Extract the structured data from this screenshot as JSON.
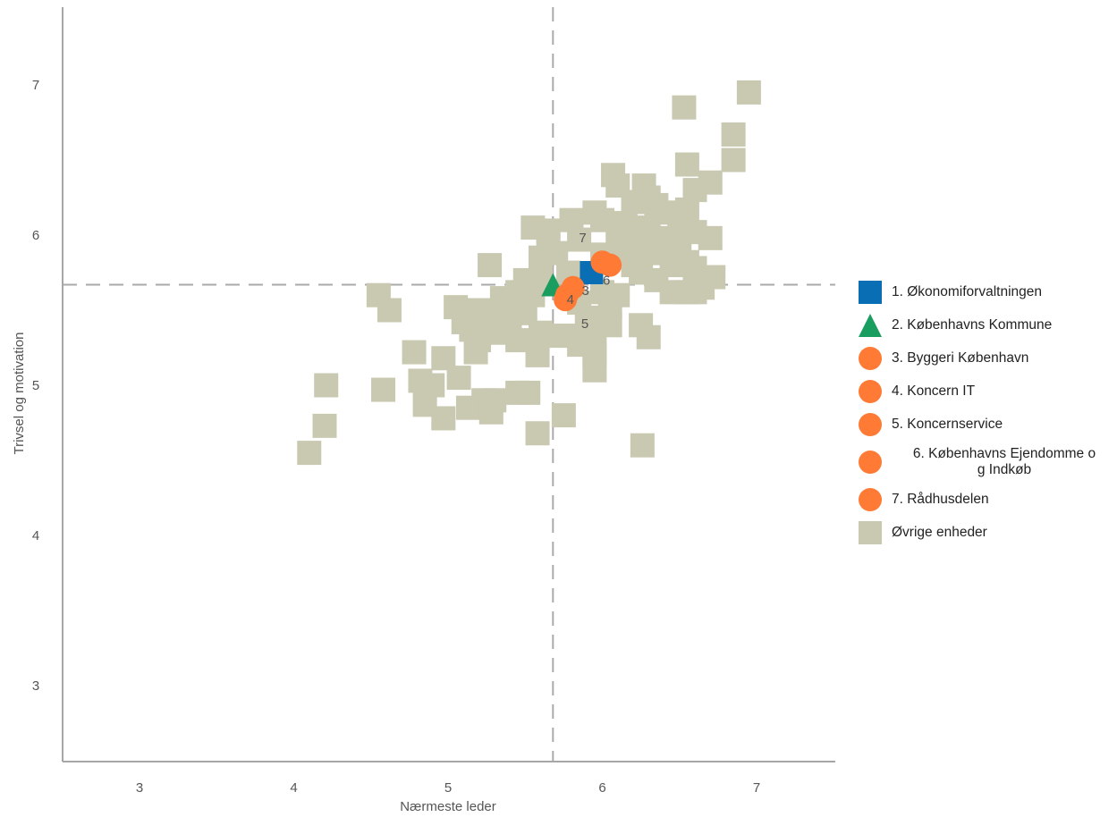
{
  "chart_data": {
    "type": "scatter",
    "xlabel": "Nærmeste leder",
    "ylabel": "Trivsel og motivation",
    "xlim": [
      2.5,
      7.55
    ],
    "ylim": [
      2.5,
      7.5
    ],
    "xticks": [
      "3",
      "4",
      "5",
      "6",
      "7"
    ],
    "yticks": [
      "3",
      "4",
      "5",
      "6",
      "7"
    ],
    "reference_lines": {
      "x": 5.68,
      "y": 5.67
    },
    "grid": false,
    "legend_position": "right",
    "series": [
      {
        "name": "1. Økonomiforvaltningen",
        "marker": "square",
        "color": "#0a6eb4",
        "points": [
          {
            "x": 5.93,
            "y": 5.75
          }
        ]
      },
      {
        "name": "2. Københavns Kommune",
        "marker": "triangle",
        "color": "#1a9e5f",
        "points": [
          {
            "x": 5.68,
            "y": 5.67
          }
        ]
      },
      {
        "name": "3. Byggeri København",
        "marker": "circle",
        "color": "#ff7a35",
        "points": [
          {
            "x": 5.81,
            "y": 5.65,
            "label": "3"
          }
        ]
      },
      {
        "name": "4. Koncern IT",
        "marker": "circle",
        "color": "#ff7a35",
        "points": [
          {
            "x": 5.77,
            "y": 5.6,
            "label": "4"
          }
        ]
      },
      {
        "name": "5. Koncernservice",
        "marker": "circle",
        "color": "#ff7a35",
        "points": [
          {
            "x": 5.76,
            "y": 5.57,
            "label": "5"
          }
        ]
      },
      {
        "name": "6. Københavns Ejendomme og Indkøb",
        "marker": "circle",
        "color": "#ff7a35",
        "points": [
          {
            "x": 6.05,
            "y": 5.8,
            "label": "6"
          }
        ]
      },
      {
        "name": "7. Rådhusdelen",
        "marker": "circle",
        "color": "#ff7a35",
        "points": [
          {
            "x": 6.0,
            "y": 5.82,
            "label": "7"
          }
        ]
      },
      {
        "name": "Øvrige enheder",
        "marker": "square",
        "color": "#c9c8b0",
        "points": [
          {
            "x": 6.95,
            "y": 6.95
          },
          {
            "x": 6.53,
            "y": 6.85
          },
          {
            "x": 6.85,
            "y": 6.67
          },
          {
            "x": 6.85,
            "y": 6.5
          },
          {
            "x": 6.55,
            "y": 6.47
          },
          {
            "x": 6.07,
            "y": 6.4
          },
          {
            "x": 6.1,
            "y": 6.33
          },
          {
            "x": 6.27,
            "y": 6.33
          },
          {
            "x": 6.7,
            "y": 6.35
          },
          {
            "x": 6.6,
            "y": 6.3
          },
          {
            "x": 6.3,
            "y": 6.25
          },
          {
            "x": 6.35,
            "y": 6.2
          },
          {
            "x": 6.2,
            "y": 6.22
          },
          {
            "x": 5.95,
            "y": 6.15
          },
          {
            "x": 6.45,
            "y": 6.15
          },
          {
            "x": 6.55,
            "y": 6.17
          },
          {
            "x": 5.8,
            "y": 6.1
          },
          {
            "x": 6.0,
            "y": 6.1
          },
          {
            "x": 6.15,
            "y": 6.08
          },
          {
            "x": 6.3,
            "y": 6.05
          },
          {
            "x": 6.5,
            "y": 6.05
          },
          {
            "x": 5.55,
            "y": 6.05
          },
          {
            "x": 5.65,
            "y": 6.03
          },
          {
            "x": 6.6,
            "y": 6.02
          },
          {
            "x": 6.25,
            "y": 6.0
          },
          {
            "x": 6.4,
            "y": 5.98
          },
          {
            "x": 5.85,
            "y": 5.97
          },
          {
            "x": 6.1,
            "y": 5.95
          },
          {
            "x": 6.7,
            "y": 5.98
          },
          {
            "x": 6.5,
            "y": 5.95
          },
          {
            "x": 5.65,
            "y": 5.93
          },
          {
            "x": 6.3,
            "y": 5.9
          },
          {
            "x": 6.4,
            "y": 5.88
          },
          {
            "x": 5.7,
            "y": 5.88
          },
          {
            "x": 6.15,
            "y": 5.85
          },
          {
            "x": 6.0,
            "y": 5.87
          },
          {
            "x": 5.6,
            "y": 5.85
          },
          {
            "x": 6.55,
            "y": 5.82
          },
          {
            "x": 6.45,
            "y": 5.8
          },
          {
            "x": 6.2,
            "y": 5.8
          },
          {
            "x": 5.27,
            "y": 5.8
          },
          {
            "x": 6.6,
            "y": 5.78
          },
          {
            "x": 6.25,
            "y": 5.75
          },
          {
            "x": 5.78,
            "y": 5.75
          },
          {
            "x": 6.72,
            "y": 5.72
          },
          {
            "x": 6.35,
            "y": 5.7
          },
          {
            "x": 5.6,
            "y": 5.72
          },
          {
            "x": 5.5,
            "y": 5.7
          },
          {
            "x": 6.65,
            "y": 5.65
          },
          {
            "x": 6.45,
            "y": 5.62
          },
          {
            "x": 6.55,
            "y": 5.62
          },
          {
            "x": 6.6,
            "y": 5.62
          },
          {
            "x": 5.45,
            "y": 5.62
          },
          {
            "x": 5.55,
            "y": 5.6
          },
          {
            "x": 6.0,
            "y": 5.62
          },
          {
            "x": 6.1,
            "y": 5.6
          },
          {
            "x": 5.35,
            "y": 5.58
          },
          {
            "x": 5.45,
            "y": 5.55
          },
          {
            "x": 5.85,
            "y": 5.55
          },
          {
            "x": 6.05,
            "y": 5.52
          },
          {
            "x": 5.05,
            "y": 5.52
          },
          {
            "x": 5.15,
            "y": 5.5
          },
          {
            "x": 5.3,
            "y": 5.5
          },
          {
            "x": 5.5,
            "y": 5.48
          },
          {
            "x": 5.9,
            "y": 5.45
          },
          {
            "x": 5.2,
            "y": 5.45
          },
          {
            "x": 5.1,
            "y": 5.42
          },
          {
            "x": 5.4,
            "y": 5.42
          },
          {
            "x": 5.95,
            "y": 5.4
          },
          {
            "x": 6.05,
            "y": 5.4
          },
          {
            "x": 6.25,
            "y": 5.4
          },
          {
            "x": 5.15,
            "y": 5.37
          },
          {
            "x": 5.3,
            "y": 5.35
          },
          {
            "x": 5.6,
            "y": 5.35
          },
          {
            "x": 5.7,
            "y": 5.33
          },
          {
            "x": 5.8,
            "y": 5.33
          },
          {
            "x": 6.3,
            "y": 5.32
          },
          {
            "x": 5.2,
            "y": 5.3
          },
          {
            "x": 5.45,
            "y": 5.3
          },
          {
            "x": 5.85,
            "y": 5.27
          },
          {
            "x": 5.95,
            "y": 5.25
          },
          {
            "x": 4.55,
            "y": 5.6
          },
          {
            "x": 4.62,
            "y": 5.5
          },
          {
            "x": 4.78,
            "y": 5.22
          },
          {
            "x": 5.18,
            "y": 5.22
          },
          {
            "x": 5.58,
            "y": 5.2
          },
          {
            "x": 5.95,
            "y": 5.2
          },
          {
            "x": 4.97,
            "y": 5.18
          },
          {
            "x": 5.95,
            "y": 5.1
          },
          {
            "x": 5.07,
            "y": 5.05
          },
          {
            "x": 4.82,
            "y": 5.03
          },
          {
            "x": 4.9,
            "y": 5.0
          },
          {
            "x": 4.21,
            "y": 5.0
          },
          {
            "x": 4.58,
            "y": 4.97
          },
          {
            "x": 5.45,
            "y": 4.95
          },
          {
            "x": 5.52,
            "y": 4.95
          },
          {
            "x": 5.23,
            "y": 4.9
          },
          {
            "x": 5.3,
            "y": 4.9
          },
          {
            "x": 4.85,
            "y": 4.87
          },
          {
            "x": 5.13,
            "y": 4.85
          },
          {
            "x": 5.28,
            "y": 4.82
          },
          {
            "x": 5.75,
            "y": 4.8
          },
          {
            "x": 4.97,
            "y": 4.78
          },
          {
            "x": 4.2,
            "y": 4.73
          },
          {
            "x": 5.58,
            "y": 4.68
          },
          {
            "x": 6.26,
            "y": 4.6
          },
          {
            "x": 4.1,
            "y": 4.55
          }
        ]
      }
    ]
  },
  "legend": {
    "items": [
      {
        "label": "1. Økonomiforvaltningen",
        "marker": "square",
        "color": "#0a6eb4",
        "label_lines": [
          "1. Økonomiforvaltningen"
        ]
      },
      {
        "label": "2. Københavns Kommune",
        "marker": "triangle",
        "color": "#1a9e5f",
        "label_lines": [
          "2. Københavns Kommune"
        ]
      },
      {
        "label": "3. Byggeri København",
        "marker": "circle",
        "color": "#ff7a35",
        "label_lines": [
          "3. Byggeri København"
        ]
      },
      {
        "label": "4. Koncern IT",
        "marker": "circle",
        "color": "#ff7a35",
        "label_lines": [
          "4. Koncern IT"
        ]
      },
      {
        "label": "5. Koncernservice",
        "marker": "circle",
        "color": "#ff7a35",
        "label_lines": [
          "5. Koncernservice"
        ]
      },
      {
        "label": "6. Københavns Ejendomme og Indkøb",
        "marker": "circle",
        "color": "#ff7a35",
        "label_lines": [
          "6. Københavns Ejendomme o",
          "g Indkøb"
        ]
      },
      {
        "label": "7. Rådhusdelen",
        "marker": "circle",
        "color": "#ff7a35",
        "label_lines": [
          "7. Rådhusdelen"
        ]
      },
      {
        "label": "Øvrige enheder",
        "marker": "square",
        "color": "#c9c8b0",
        "label_lines": [
          "Øvrige enheder"
        ]
      }
    ]
  }
}
